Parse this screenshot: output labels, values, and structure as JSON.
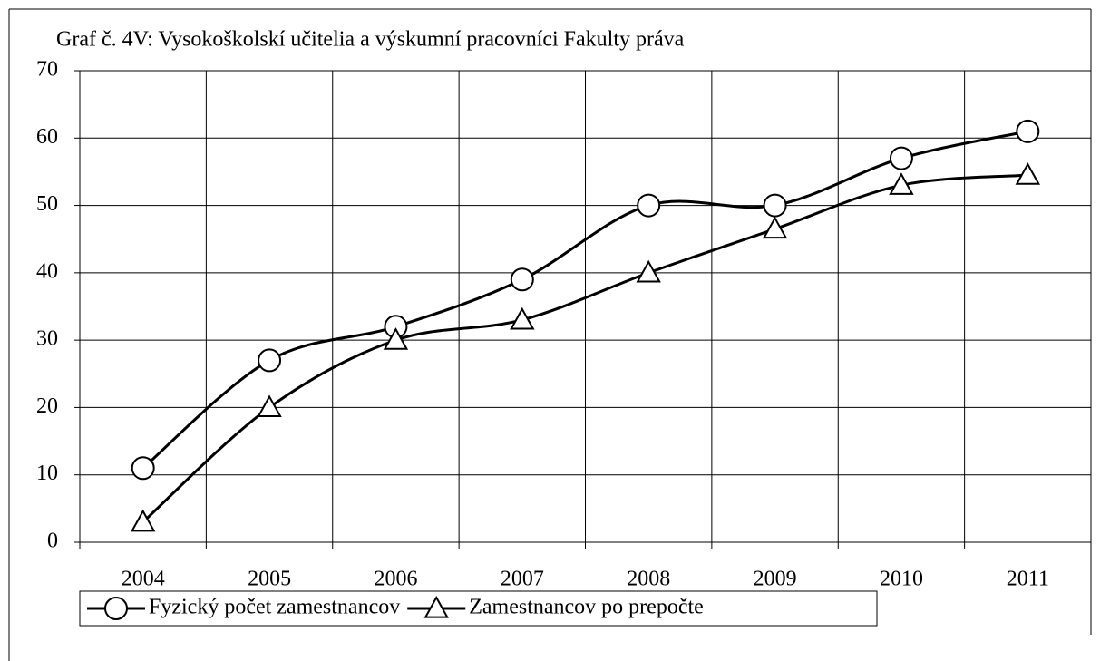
{
  "chart_data": {
    "type": "line",
    "title": "Graf č. 4V: Vysokoškolskí učitelia a výskumní pracovníci Fakulty práva",
    "categories": [
      "2004",
      "2005",
      "2006",
      "2007",
      "2008",
      "2009",
      "2010",
      "2011"
    ],
    "series": [
      {
        "name": "Fyzický počet zamestnancov",
        "color": "#000000",
        "marker": "circle",
        "values": [
          11,
          27,
          32,
          39,
          50,
          50,
          57,
          61
        ]
      },
      {
        "name": "Zamestnancov po prepočte",
        "color": "#000000",
        "marker": "triangle",
        "values": [
          3,
          20,
          30,
          33,
          40,
          46.5,
          53,
          54.5
        ]
      }
    ],
    "ylim": [
      0,
      70
    ],
    "yticks": [
      0,
      10,
      20,
      30,
      40,
      50,
      60,
      70
    ],
    "grid": true,
    "legend": "bottom"
  }
}
